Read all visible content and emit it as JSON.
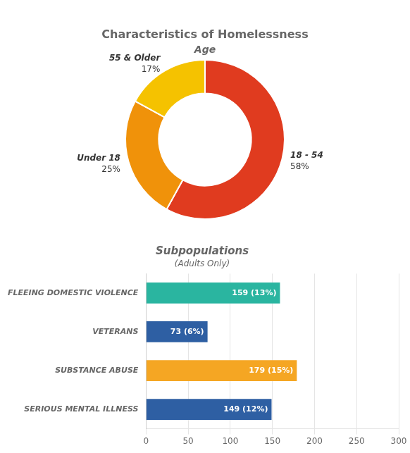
{
  "chart_data": [
    {
      "type": "doughnut",
      "title": "Characteristics of Homelessness",
      "subtitle": "Age",
      "categories": [
        "18 - 54",
        "Under 18",
        "55 & Older"
      ],
      "values": [
        58,
        25,
        17
      ],
      "value_labels": [
        "58%",
        "25%",
        "17%"
      ],
      "colors": [
        "#e03b1f",
        "#f0920a",
        "#f5c200"
      ],
      "data_labels": true
    },
    {
      "type": "bar",
      "orientation": "horizontal",
      "title": "Subpopulations",
      "subtitle": "(Adults Only)",
      "categories": [
        "FLEEING DOMESTIC VIOLENCE",
        "VETERANS",
        "SUBSTANCE ABUSE",
        "SERIOUS MENTAL ILLNESS"
      ],
      "values": [
        159,
        73,
        179,
        149
      ],
      "value_labels": [
        "159 (13%)",
        "73 (6%)",
        "179 (15%)",
        "149 (12%)"
      ],
      "colors": [
        "#2ab5a0",
        "#2e5fa3",
        "#f5a623",
        "#2e5fa3"
      ],
      "xlim": [
        0,
        300
      ],
      "xticks": [
        0,
        50,
        100,
        150,
        200,
        250,
        300
      ],
      "grid": true,
      "data_labels": true
    }
  ]
}
